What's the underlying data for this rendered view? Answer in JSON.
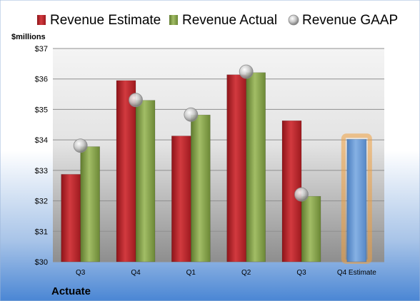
{
  "chart_data": {
    "type": "bar",
    "company": "Actuate",
    "y_unit_label": "$millions",
    "categories": [
      "Q3",
      "Q4",
      "Q1",
      "Q2",
      "Q3",
      "Q4 Estimate"
    ],
    "ylim": [
      30,
      37
    ],
    "y_ticks": [
      "$30",
      "$31",
      "$32",
      "$33",
      "$34",
      "$35",
      "$36",
      "$37"
    ],
    "legend_position": "top",
    "grid": true,
    "series": [
      {
        "name": "Revenue Estimate",
        "kind": "bar",
        "color": "#c0262b",
        "values": [
          32.87,
          35.95,
          34.13,
          36.14,
          34.63,
          null
        ]
      },
      {
        "name": "Revenue Actual",
        "kind": "bar",
        "color": "#8aa450",
        "values": [
          33.78,
          35.3,
          34.82,
          36.21,
          32.15,
          null
        ]
      },
      {
        "name": "Revenue GAAP",
        "kind": "marker",
        "color": "#b0b0b0",
        "values": [
          33.81,
          35.31,
          34.83,
          36.24,
          32.21,
          null
        ]
      },
      {
        "name": "Q4 Estimate",
        "kind": "highlight-bar",
        "color": "#6f9fd6",
        "highlight_color": "#f0a040",
        "values": [
          null,
          null,
          null,
          null,
          null,
          34.02
        ]
      }
    ]
  }
}
